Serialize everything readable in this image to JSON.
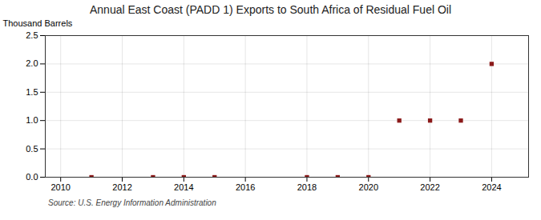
{
  "chart_data": {
    "type": "scatter",
    "title": "Annual East Coast (PADD 1) Exports to South Africa of Residual Fuel Oil",
    "ylabel": "Thousand Barrels",
    "annotations": [
      "Source: U.S. Energy Information Administration"
    ],
    "x": [
      2011,
      2013,
      2014,
      2015,
      2018,
      2019,
      2020,
      2021,
      2022,
      2023,
      2024
    ],
    "values": [
      0.0,
      0.0,
      0.0,
      0.0,
      0.0,
      0.0,
      0.0,
      1.0,
      1.0,
      1.0,
      2.0
    ],
    "color": "#8b1a1a",
    "marker": "square",
    "xlim": [
      2009.5,
      2025.2
    ],
    "ylim": [
      0.0,
      2.5
    ],
    "xticks": [
      2010,
      2012,
      2014,
      2016,
      2018,
      2020,
      2022,
      2024
    ],
    "yticks": [
      {
        "value": 0,
        "label": "0.0"
      },
      0.5,
      {
        "value": 1,
        "label": "1.0"
      },
      1.5,
      {
        "value": 2,
        "label": "2.0"
      },
      2.5
    ],
    "grid": true
  }
}
